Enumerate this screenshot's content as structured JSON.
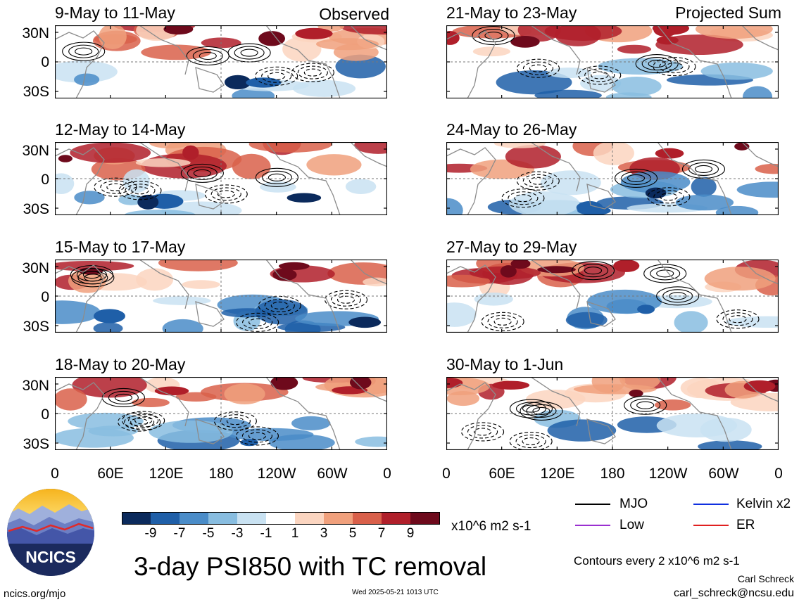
{
  "panels_left": [
    {
      "title": "9-May to 11-May",
      "label": "Observed"
    },
    {
      "title": "12-May to 14-May",
      "label": ""
    },
    {
      "title": "15-May to 17-May",
      "label": ""
    },
    {
      "title": "18-May to 20-May",
      "label": ""
    }
  ],
  "panels_right": [
    {
      "title": "21-May to 23-May",
      "label": "Projected Sum"
    },
    {
      "title": "24-May to 26-May",
      "label": ""
    },
    {
      "title": "27-May to 29-May",
      "label": ""
    },
    {
      "title": "30-May to 1-Jun",
      "label": ""
    }
  ],
  "lat_labels": [
    "30N",
    "0",
    "30S"
  ],
  "lon_labels": [
    "0",
    "60E",
    "120E",
    "180",
    "120W",
    "60W",
    "0"
  ],
  "colorbar": {
    "ticks": [
      "-9",
      "-7",
      "-5",
      "-3",
      "-1",
      "1",
      "3",
      "5",
      "7",
      "9"
    ],
    "units": "x10^6 m2 s-1",
    "colors": [
      "#0b2a5c",
      "#1f5fa8",
      "#4a8cc8",
      "#88bde0",
      "#c9e2f2",
      "#ffffff",
      "#fbd5c0",
      "#f0a07c",
      "#d9604a",
      "#b01f2a",
      "#6e0a1c"
    ]
  },
  "legend": [
    {
      "name": "MJO",
      "color": "#000000"
    },
    {
      "name": "Kelvin x2",
      "color": "#1030e0"
    },
    {
      "name": "Low",
      "color": "#9a30d0"
    },
    {
      "name": "ER",
      "color": "#e02020"
    }
  ],
  "contours_note": "Contours every 2 x10^6 m2 s-1",
  "main_title": "3-day PSI850 with TC removal",
  "logo_text": "NCICS",
  "footer_left": "ncics.org/mjo",
  "footer_center": "Wed 2025-05-21 1013 UTC",
  "author": "Carl Schreck",
  "email": "carl_schreck@ncsu.edu"
}
